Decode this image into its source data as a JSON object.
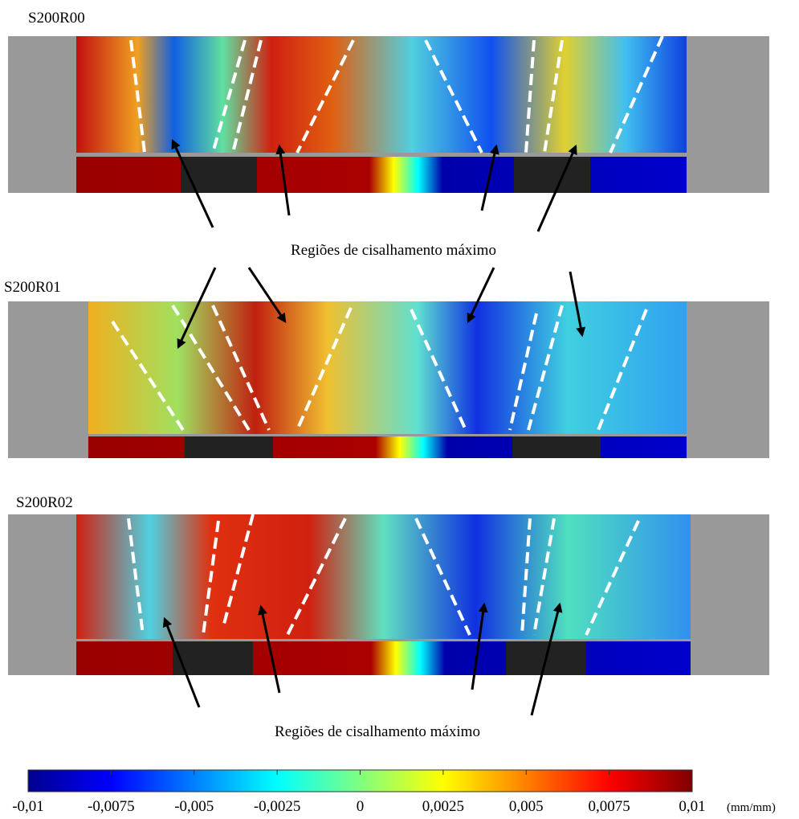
{
  "panels": [
    {
      "label": "S200R00"
    },
    {
      "label": "S200R01"
    },
    {
      "label": "S200R02"
    }
  ],
  "annotations": [
    "Regiões de cisalhamento máximo",
    "Regiões de cisalhamento máximo"
  ],
  "colorbar": {
    "lim": [
      -0.01,
      0.01
    ],
    "ticks": [
      {
        "value": -0.01,
        "label": "-0,01"
      },
      {
        "value": -0.0075,
        "label": "-0,0075"
      },
      {
        "value": -0.005,
        "label": "-0,005"
      },
      {
        "value": -0.0025,
        "label": "-0,0025"
      },
      0,
      {
        "value": 0.0025,
        "label": "0,0025"
      },
      {
        "value": 0.005,
        "label": "0,005"
      },
      {
        "value": 0.0075,
        "label": "0,0075"
      },
      {
        "value": 0.01,
        "label": "0,01"
      }
    ],
    "unit": "(mm/mm)"
  }
}
